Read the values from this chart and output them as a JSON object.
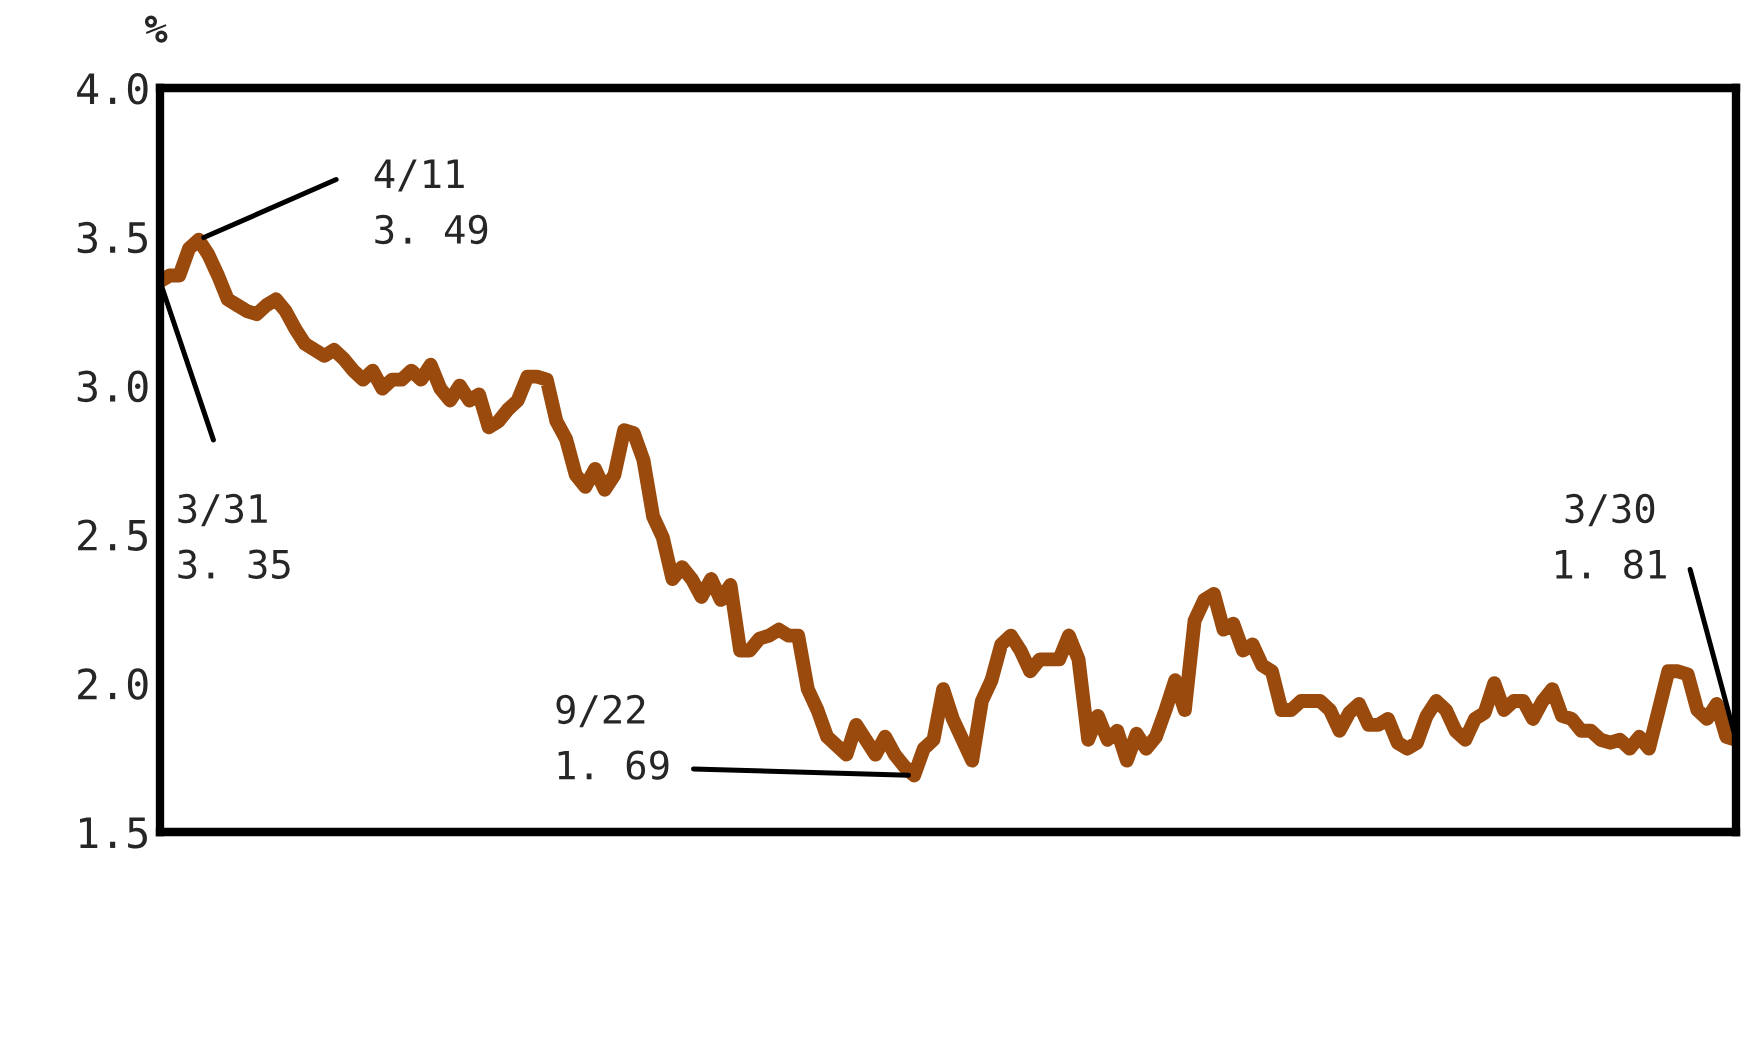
{
  "chart_data": {
    "type": "line",
    "ylabel": "%",
    "categories": [
      null,
      null,
      null,
      null,
      null,
      null,
      null,
      null,
      null,
      null,
      null,
      null,
      null,
      null,
      null,
      null,
      null,
      null,
      null,
      null,
      null,
      null,
      null,
      null,
      null,
      null,
      null,
      null,
      null,
      null,
      null,
      null,
      null,
      null,
      null,
      null,
      null,
      null,
      null,
      null,
      null,
      null,
      null,
      null,
      null,
      null,
      null,
      null,
      null,
      null,
      null,
      null,
      null,
      null,
      null,
      null,
      null,
      null,
      null,
      null,
      null,
      null,
      null,
      null,
      null,
      null,
      null,
      null,
      null,
      null,
      null,
      null,
      null,
      null,
      null,
      null,
      null,
      null,
      null,
      null,
      null,
      null,
      null,
      null,
      null,
      null,
      null,
      null,
      null,
      null,
      null,
      null,
      null,
      null,
      null,
      null,
      null,
      null,
      null,
      null,
      null,
      null,
      null,
      null,
      null,
      null,
      null,
      null,
      null,
      null,
      null,
      null,
      null,
      null,
      null,
      null,
      null,
      null,
      null,
      null,
      null,
      null,
      null,
      null,
      null,
      null,
      null,
      null,
      null,
      null,
      null,
      null,
      null,
      null,
      null,
      null,
      null,
      null,
      null,
      null,
      null,
      null,
      null,
      null,
      null,
      null,
      null,
      null,
      null,
      null,
      null,
      null,
      null,
      null,
      null,
      null,
      null,
      null,
      null,
      null,
      null,
      null,
      null,
      null
    ],
    "series": [
      {
        "color": "#9a4a0c",
        "values": [
          3.35,
          3.37,
          3.37,
          3.46,
          3.49,
          3.44,
          3.37,
          3.29,
          3.27,
          3.25,
          3.24,
          3.27,
          3.29,
          3.25,
          3.19,
          3.14,
          3.12,
          3.1,
          3.12,
          3.09,
          3.05,
          3.02,
          3.05,
          2.99,
          3.02,
          3.02,
          3.05,
          3.02,
          3.07,
          2.99,
          2.95,
          3.0,
          2.95,
          2.97,
          2.86,
          2.88,
          2.92,
          2.95,
          3.03,
          3.03,
          3.02,
          2.88,
          2.82,
          2.7,
          2.66,
          2.72,
          2.65,
          2.7,
          2.85,
          2.84,
          2.75,
          2.56,
          2.49,
          2.35,
          2.39,
          2.35,
          2.29,
          2.35,
          2.28,
          2.33,
          2.11,
          2.11,
          2.15,
          2.16,
          2.18,
          2.16,
          2.16,
          1.98,
          1.91,
          1.82,
          1.79,
          1.76,
          1.86,
          1.81,
          1.76,
          1.82,
          1.76,
          1.72,
          1.69,
          1.78,
          1.81,
          1.98,
          1.88,
          1.81,
          1.74,
          1.94,
          2.01,
          2.13,
          2.16,
          2.11,
          2.04,
          2.08,
          2.08,
          2.08,
          2.16,
          2.08,
          1.81,
          1.89,
          1.81,
          1.84,
          1.74,
          1.83,
          1.78,
          1.82,
          1.91,
          2.01,
          1.91,
          2.21,
          2.28,
          2.3,
          2.18,
          2.2,
          2.11,
          2.13,
          2.06,
          2.04,
          1.91,
          1.91,
          1.94,
          1.94,
          1.94,
          1.91,
          1.84,
          1.9,
          1.93,
          1.86,
          1.86,
          1.88,
          1.8,
          1.78,
          1.8,
          1.89,
          1.94,
          1.91,
          1.84,
          1.81,
          1.88,
          1.9,
          2.0,
          1.91,
          1.94,
          1.94,
          1.88,
          1.94,
          1.98,
          1.89,
          1.88,
          1.84,
          1.84,
          1.81,
          1.8,
          1.81,
          1.78,
          1.82,
          1.78,
          1.91,
          2.04,
          2.04,
          2.03,
          1.91,
          1.88,
          1.93,
          1.82,
          1.81
        ]
      }
    ],
    "ylim": [
      1.5,
      4.0
    ],
    "yticks": [
      1.5,
      {
        "value": 2.0,
        "label": "2.0"
      },
      2.5,
      {
        "value": 3.0,
        "label": "3.0"
      },
      3.5,
      {
        "value": 4.0,
        "label": "4.0"
      }
    ],
    "grid": false,
    "legend": false,
    "marker": "none",
    "line_style": "solid",
    "annotations": [
      "3/31\n3. 35",
      "4/11\n3. 49",
      "9/22\n1. 69",
      "3/30\n1. 81"
    ]
  }
}
